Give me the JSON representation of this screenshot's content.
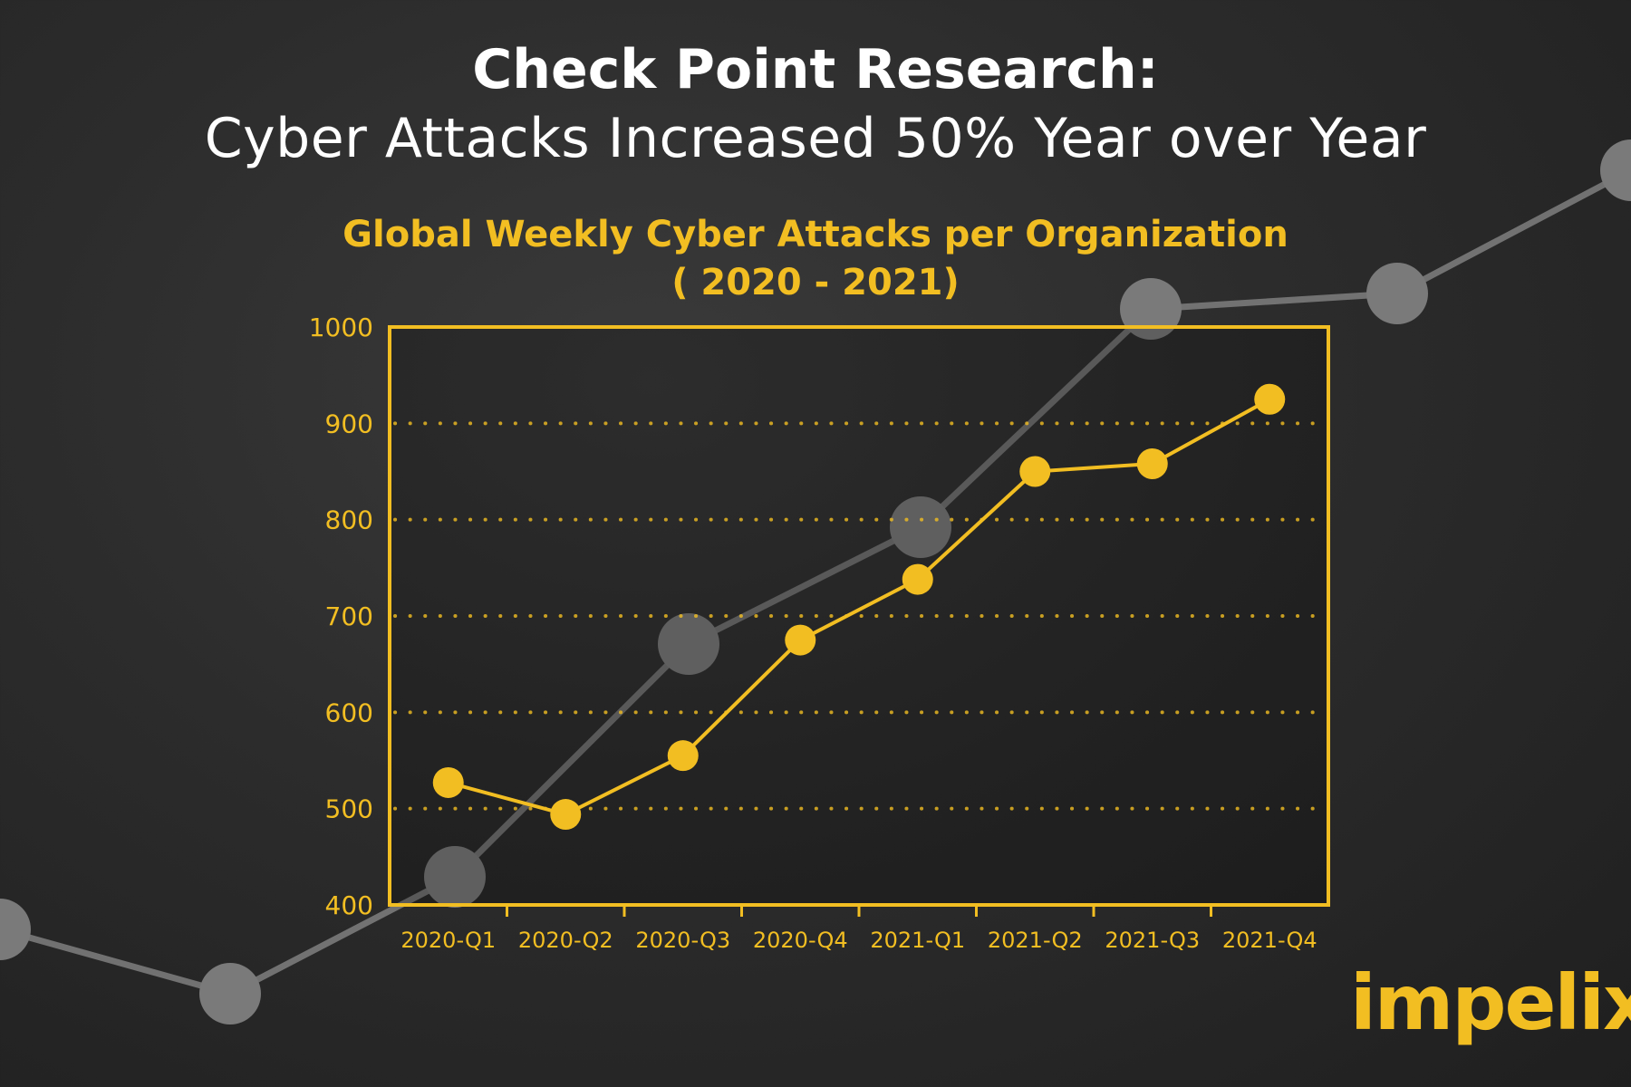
{
  "header": {
    "title": "Check Point Research:",
    "subtitle": "Cyber Attacks Increased 50% Year over Year"
  },
  "brand": {
    "logo_text": "impelix"
  },
  "colors": {
    "accent": "#f2be22",
    "background": "#2a2a2a",
    "decoration": "#7a7a7a",
    "text": "#ffffff"
  },
  "chart_data": {
    "type": "line",
    "title": "Global Weekly Cyber Attacks per Organization",
    "subtitle": "( 2020 - 2021)",
    "categories": [
      "2020-Q1",
      "2020-Q2",
      "2020-Q3",
      "2020-Q4",
      "2021-Q1",
      "2021-Q2",
      "2021-Q3",
      "2021-Q4"
    ],
    "series": [
      {
        "values": [
          527,
          494,
          555,
          675,
          738,
          850,
          858,
          925
        ]
      }
    ],
    "xlabel": "",
    "ylabel": "",
    "ylim": [
      400,
      1000
    ],
    "yticks": [
      400,
      500,
      600,
      700,
      800,
      900,
      1000
    ],
    "grid": "horizontal dotted"
  }
}
